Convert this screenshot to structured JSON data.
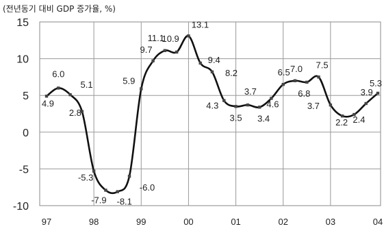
{
  "chart_data": {
    "type": "line",
    "ylabel": "(전년동기 대비 GDP 증가율, %)",
    "ylim": [
      -10,
      15
    ],
    "yticks": [
      15,
      10,
      5,
      0,
      -5,
      -10
    ],
    "xticks": [
      "97",
      "98",
      "99",
      "00",
      "01",
      "02",
      "03",
      "04"
    ],
    "grid": true,
    "series": [
      {
        "values": [
          {
            "x": 0.0,
            "y": 4.9
          },
          {
            "x": 0.25,
            "y": 6.0
          },
          {
            "x": 0.5,
            "y": 5.1
          },
          {
            "x": 0.75,
            "y": 2.8
          },
          {
            "x": 1.0,
            "y": -5.3
          },
          {
            "x": 1.25,
            "y": -7.9
          },
          {
            "x": 1.5,
            "y": -8.1
          },
          {
            "x": 1.75,
            "y": -6.0
          },
          {
            "x": 2.0,
            "y": 5.9
          },
          {
            "x": 2.25,
            "y": 9.7
          },
          {
            "x": 2.5,
            "y": 11.1
          },
          {
            "x": 2.75,
            "y": 10.9
          },
          {
            "x": 3.0,
            "y": 13.1
          },
          {
            "x": 3.25,
            "y": 9.4
          },
          {
            "x": 3.5,
            "y": 8.2
          },
          {
            "x": 3.75,
            "y": 4.3
          },
          {
            "x": 4.0,
            "y": 3.5
          },
          {
            "x": 4.25,
            "y": 3.7
          },
          {
            "x": 4.5,
            "y": 3.4
          },
          {
            "x": 4.75,
            "y": 4.6
          },
          {
            "x": 5.0,
            "y": 6.5
          },
          {
            "x": 5.25,
            "y": 7.0
          },
          {
            "x": 5.5,
            "y": 6.8
          },
          {
            "x": 5.75,
            "y": 7.5
          },
          {
            "x": 6.0,
            "y": 3.7
          },
          {
            "x": 6.25,
            "y": 2.2
          },
          {
            "x": 6.5,
            "y": 2.4
          },
          {
            "x": 6.75,
            "y": 3.9
          },
          {
            "x": 7.0,
            "y": 5.3
          }
        ]
      }
    ],
    "labels": [
      {
        "text": "4.9",
        "idx": 0
      },
      {
        "text": "6.0",
        "idx": 1
      },
      {
        "text": "5.1",
        "idx": 2
      },
      {
        "text": "2.8",
        "idx": 3
      },
      {
        "text": "-5.3",
        "idx": 4
      },
      {
        "text": "-7.9",
        "idx": 5
      },
      {
        "text": "-8.1",
        "idx": 6
      },
      {
        "text": "-6.0",
        "idx": 7
      },
      {
        "text": "5.9",
        "idx": 8
      },
      {
        "text": "9.7",
        "idx": 9
      },
      {
        "text": "11.1",
        "idx": 10
      },
      {
        "text": "10.9",
        "idx": 11
      },
      {
        "text": "13.1",
        "idx": 12
      },
      {
        "text": "9.4",
        "idx": 13
      },
      {
        "text": "8.2",
        "idx": 14
      },
      {
        "text": "4.3",
        "idx": 15
      },
      {
        "text": "3.5",
        "idx": 16
      },
      {
        "text": "3.7",
        "idx": 17
      },
      {
        "text": "3.4",
        "idx": 18
      },
      {
        "text": "4.6",
        "idx": 19
      },
      {
        "text": "6.5",
        "idx": 20
      },
      {
        "text": "7.0",
        "idx": 21
      },
      {
        "text": "6.8",
        "idx": 22
      },
      {
        "text": "7.5",
        "idx": 23
      },
      {
        "text": "3.7",
        "idx": 24
      },
      {
        "text": "2.2",
        "idx": 25
      },
      {
        "text": "2.4",
        "idx": 26
      },
      {
        "text": "3.9",
        "idx": 27
      },
      {
        "text": "5.3",
        "idx": 28
      }
    ]
  }
}
